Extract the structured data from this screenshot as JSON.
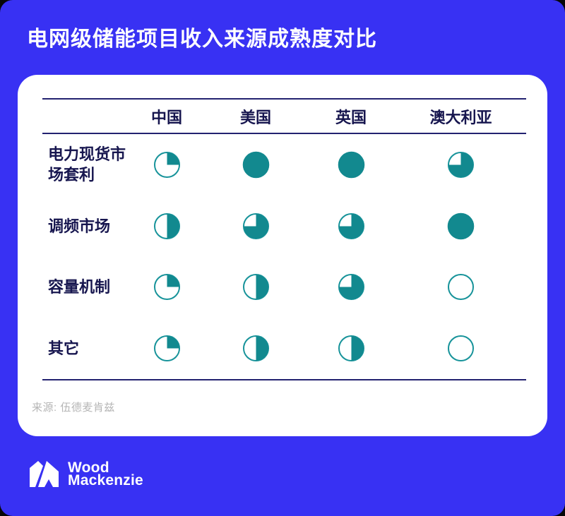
{
  "page": {
    "title": "电网级储能项目收入来源成熟度对比",
    "source_label": "来源: 伍德麦肯兹"
  },
  "logo": {
    "alt": "Wood Mackenzie",
    "line1": "Wood",
    "line2": "Mackenzie"
  },
  "theme": {
    "background_blue": "#3831F3",
    "card_white": "#FFFFFF",
    "navy_text": "#17164F",
    "rule_navy": "#232270",
    "source_gray": "#B5B5B5"
  },
  "chart_data": {
    "type": "table",
    "title": "电网级储能项目收入来源成熟度对比",
    "value_encoding": "harvey-ball: fraction of circle filled = maturity level (0, 0.25, 0.5, 0.75, 1)",
    "legend_position": "none",
    "columns": [
      "中国",
      "美国",
      "英国",
      "澳大利亚"
    ],
    "rows": [
      {
        "label": "电力现货市场套利",
        "values": [
          0.25,
          1,
          1,
          0.75
        ]
      },
      {
        "label": "调频市场",
        "values": [
          0.5,
          0.75,
          0.75,
          1
        ]
      },
      {
        "label": "容量机制",
        "values": [
          0.25,
          0.5,
          0.75,
          0
        ]
      },
      {
        "label": "其它",
        "values": [
          0.25,
          0.5,
          0.5,
          0
        ]
      }
    ],
    "colors": {
      "ball_fill": "#12898F",
      "ball_stroke": "#17939A",
      "ball_empty": "#FFFFFF"
    }
  }
}
